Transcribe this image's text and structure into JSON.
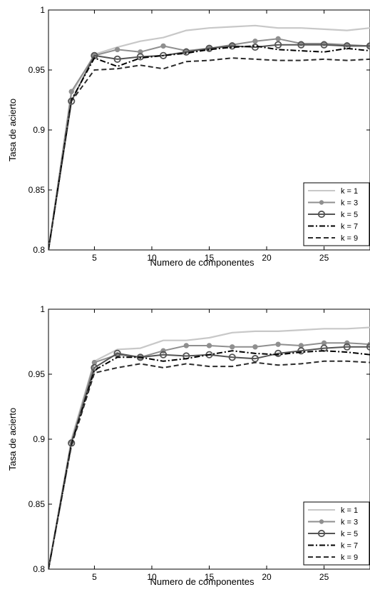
{
  "chart_data": [
    {
      "type": "line",
      "title": "",
      "xlabel": "Numero de componentes",
      "ylabel": "Tasa de acierto",
      "xlim": [
        1,
        29
      ],
      "ylim": [
        0.8,
        1
      ],
      "xticks": [
        5,
        10,
        15,
        20,
        25
      ],
      "xtick_labels": [
        "5",
        "10",
        "15",
        "20",
        "25"
      ],
      "yticks": [
        0.8,
        0.85,
        0.9,
        0.95,
        1
      ],
      "ytick_labels": [
        "0.8",
        "0.85",
        "0.9",
        "0.95",
        "1"
      ],
      "grid": false,
      "legend_position": "bottom-right",
      "x": [
        1,
        3,
        5,
        7,
        9,
        11,
        13,
        15,
        17,
        19,
        21,
        23,
        25,
        27,
        29
      ],
      "series": [
        {
          "name": "k = 1",
          "color": "#c8c8c8",
          "style": "solid",
          "marker": "none",
          "values": [
            0.8,
            0.93,
            0.963,
            0.969,
            0.974,
            0.977,
            0.983,
            0.985,
            0.986,
            0.987,
            0.985,
            0.985,
            0.984,
            0.983,
            0.985
          ]
        },
        {
          "name": "k = 3",
          "color": "#8f8f8f",
          "style": "solid",
          "marker": "dot",
          "values": [
            0.8,
            0.932,
            0.962,
            0.967,
            0.965,
            0.97,
            0.966,
            0.968,
            0.971,
            0.974,
            0.976,
            0.972,
            0.972,
            0.971,
            0.97
          ]
        },
        {
          "name": "k = 5",
          "color": "#555555",
          "style": "solid",
          "marker": "circle",
          "values": [
            0.8,
            0.924,
            0.962,
            0.959,
            0.961,
            0.962,
            0.965,
            0.968,
            0.97,
            0.969,
            0.971,
            0.971,
            0.971,
            0.97,
            0.97
          ]
        },
        {
          "name": "k = 7",
          "color": "#000000",
          "style": "dashdot",
          "marker": "none",
          "values": [
            0.8,
            0.925,
            0.96,
            0.953,
            0.96,
            0.962,
            0.964,
            0.967,
            0.969,
            0.97,
            0.967,
            0.966,
            0.965,
            0.968,
            0.966
          ]
        },
        {
          "name": "k = 9",
          "color": "#2b2b2b",
          "style": "dashed",
          "marker": "none",
          "values": [
            0.8,
            0.924,
            0.95,
            0.951,
            0.954,
            0.951,
            0.957,
            0.958,
            0.96,
            0.959,
            0.958,
            0.958,
            0.959,
            0.958,
            0.959
          ]
        }
      ]
    },
    {
      "type": "line",
      "title": "",
      "xlabel": "Numero de componentes",
      "ylabel": "Tasa de acierto",
      "xlim": [
        1,
        29
      ],
      "ylim": [
        0.8,
        1
      ],
      "xticks": [
        5,
        10,
        15,
        20,
        25
      ],
      "xtick_labels": [
        "5",
        "10",
        "15",
        "20",
        "25"
      ],
      "yticks": [
        0.8,
        0.85,
        0.9,
        0.95,
        1
      ],
      "ytick_labels": [
        "0.8",
        "0.85",
        "0.9",
        "0.95",
        "1"
      ],
      "grid": false,
      "legend_position": "bottom-right",
      "x": [
        1,
        3,
        5,
        7,
        9,
        11,
        13,
        15,
        17,
        19,
        21,
        23,
        25,
        27,
        29
      ],
      "series": [
        {
          "name": "k = 1",
          "color": "#c8c8c8",
          "style": "solid",
          "marker": "none",
          "values": [
            0.8,
            0.9,
            0.96,
            0.969,
            0.97,
            0.976,
            0.976,
            0.978,
            0.982,
            0.983,
            0.983,
            0.984,
            0.985,
            0.985,
            0.986
          ]
        },
        {
          "name": "k = 3",
          "color": "#8f8f8f",
          "style": "solid",
          "marker": "dot",
          "values": [
            0.8,
            0.898,
            0.959,
            0.965,
            0.963,
            0.968,
            0.972,
            0.972,
            0.971,
            0.971,
            0.973,
            0.972,
            0.974,
            0.974,
            0.973
          ]
        },
        {
          "name": "k = 5",
          "color": "#555555",
          "style": "solid",
          "marker": "circle",
          "values": [
            0.8,
            0.897,
            0.955,
            0.966,
            0.963,
            0.965,
            0.964,
            0.965,
            0.963,
            0.962,
            0.966,
            0.968,
            0.97,
            0.971,
            0.971
          ]
        },
        {
          "name": "k = 7",
          "color": "#000000",
          "style": "dashdot",
          "marker": "none",
          "values": [
            0.8,
            0.896,
            0.953,
            0.963,
            0.963,
            0.96,
            0.962,
            0.965,
            0.968,
            0.966,
            0.965,
            0.967,
            0.968,
            0.967,
            0.965
          ]
        },
        {
          "name": "k = 9",
          "color": "#2b2b2b",
          "style": "dashed",
          "marker": "none",
          "values": [
            0.8,
            0.895,
            0.951,
            0.955,
            0.958,
            0.955,
            0.958,
            0.956,
            0.956,
            0.959,
            0.957,
            0.958,
            0.96,
            0.96,
            0.959
          ]
        }
      ]
    }
  ]
}
